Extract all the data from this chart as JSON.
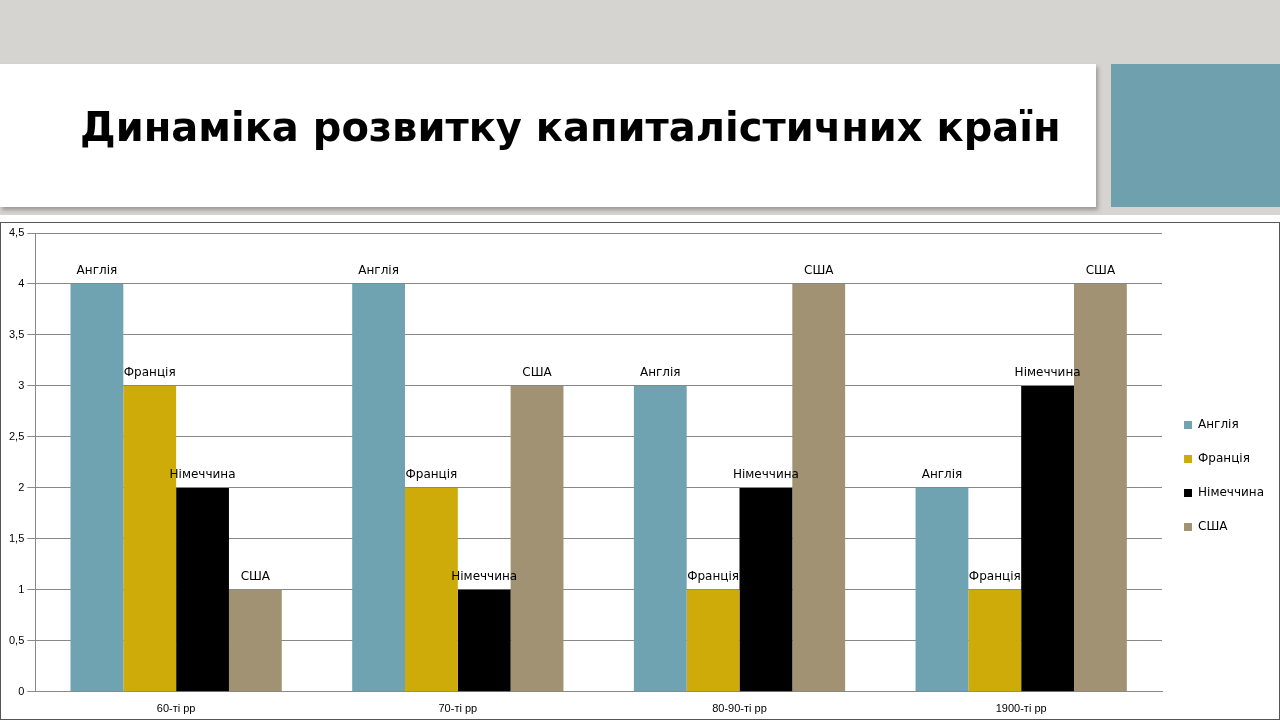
{
  "chart_data": {
    "type": "bar",
    "title": "Динаміка розвитку капиталістичних країн",
    "categories": [
      "60-ті рр",
      "70-ті рр",
      "80-90-ті рр",
      "1900-ті рр"
    ],
    "series": [
      {
        "name": "Англія",
        "color": "#6fa3b2",
        "values": [
          4,
          4,
          3,
          2
        ],
        "value_labels": [
          "Англія",
          "Англія",
          "Англія",
          "Англія"
        ]
      },
      {
        "name": "Франція",
        "color": "#cfab0a",
        "values": [
          3,
          2,
          1,
          1
        ],
        "value_labels": [
          "Франція",
          "Франція",
          "Франція",
          "Франція"
        ]
      },
      {
        "name": "Німеччина",
        "color": "#000000",
        "values": [
          2,
          1,
          2,
          3
        ],
        "value_labels": [
          "Німеччина",
          "Німеччина",
          "Німеччина",
          "Німеччина"
        ]
      },
      {
        "name": "США",
        "color": "#a09272",
        "values": [
          1,
          3,
          4,
          4
        ],
        "value_labels": [
          "США",
          "США",
          "США",
          "США"
        ]
      }
    ],
    "ylim": [
      0,
      4.5
    ],
    "yticks": [
      0,
      {
        "value": 0.5,
        "label": "0,5"
      },
      1,
      {
        "value": 1.5,
        "label": "1,5"
      },
      2,
      {
        "value": 2.5,
        "label": "2,5"
      },
      3,
      {
        "value": 3.5,
        "label": "3,5"
      },
      4,
      {
        "value": 4.5,
        "label": "4,5"
      }
    ],
    "grid": "y",
    "legend": "right"
  }
}
